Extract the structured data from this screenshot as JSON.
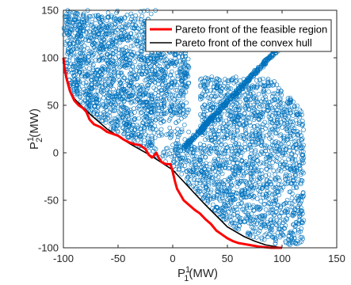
{
  "chart_data": {
    "type": "scatter",
    "title": "",
    "xlabel": {
      "base": "P",
      "sup": "1",
      "sub": "1",
      "unit": "(MW)"
    },
    "ylabel": {
      "base": "P",
      "sup": "1",
      "sub": "2",
      "unit": "(MW)"
    },
    "xlim": [
      -100,
      150
    ],
    "ylim": [
      -100,
      150
    ],
    "xticks": [
      "-100",
      "-50",
      "0",
      "50",
      "100",
      "150"
    ],
    "yticks": [
      "-100",
      "-50",
      "0",
      "50",
      "100",
      "150"
    ],
    "grid": false,
    "legend_position": "top-right",
    "colors": {
      "scatter": "#0072BD",
      "front_feasible": "#FF0000",
      "front_hull": "#000000",
      "axis": "#262626"
    },
    "series": [
      {
        "name": "Pareto front of the feasible region",
        "style": "line",
        "color": "#FF0000",
        "points": [
          [
            -100,
            100
          ],
          [
            -99,
            90
          ],
          [
            -97,
            78
          ],
          [
            -94,
            65
          ],
          [
            -90,
            55
          ],
          [
            -86,
            50
          ],
          [
            -82,
            47
          ],
          [
            -79,
            43
          ],
          [
            -76,
            35
          ],
          [
            -72,
            30
          ],
          [
            -66,
            27
          ],
          [
            -60,
            22
          ],
          [
            -55,
            20
          ],
          [
            -50,
            18
          ],
          [
            -45,
            14
          ],
          [
            -40,
            11
          ],
          [
            -35,
            9
          ],
          [
            -30,
            8
          ],
          [
            -25,
            4
          ],
          [
            -22,
            -2
          ],
          [
            -19,
            -5
          ],
          [
            -17,
            -3
          ],
          [
            -15,
            0
          ],
          [
            -13,
            -5
          ],
          [
            -10,
            -10
          ],
          [
            -6,
            -12
          ],
          [
            -2,
            -12
          ],
          [
            0,
            -20
          ],
          [
            2,
            -30
          ],
          [
            4,
            -38
          ],
          [
            6,
            -42
          ],
          [
            10,
            -50
          ],
          [
            15,
            -55
          ],
          [
            20,
            -60
          ],
          [
            25,
            -64
          ],
          [
            30,
            -70
          ],
          [
            35,
            -75
          ],
          [
            40,
            -82
          ],
          [
            45,
            -86
          ],
          [
            50,
            -90
          ],
          [
            55,
            -93
          ],
          [
            60,
            -95
          ],
          [
            65,
            -96
          ],
          [
            70,
            -97
          ],
          [
            80,
            -99
          ],
          [
            90,
            -100
          ],
          [
            100,
            -100
          ]
        ]
      },
      {
        "name": "Pareto front of the convex hull",
        "style": "line",
        "color": "#000000",
        "points": [
          [
            -100,
            100
          ],
          [
            -98,
            80
          ],
          [
            -95,
            68
          ],
          [
            -90,
            57
          ],
          [
            -85,
            51
          ],
          [
            -75,
            40
          ],
          [
            -60,
            25
          ],
          [
            -40,
            10
          ],
          [
            -20,
            -3
          ],
          [
            0,
            -18
          ],
          [
            30,
            -55
          ],
          [
            50,
            -78
          ],
          [
            65,
            -88
          ],
          [
            75,
            -93
          ],
          [
            85,
            -97
          ],
          [
            100,
            -100
          ]
        ]
      },
      {
        "name": "",
        "style": "scatter",
        "color": "#0072BD",
        "clusters": [
          {
            "label": "upper-left",
            "x_range": [
              -100,
              15
            ],
            "y_range": [
              -10,
              150
            ],
            "approx_points": 1800
          },
          {
            "label": "lower-right",
            "x_range": [
              0,
              120
            ],
            "y_range": [
              -100,
              80
            ],
            "approx_points": 1800
          },
          {
            "label": "diagonal-band",
            "x_from": 10,
            "y_from": 5,
            "x_to": 103,
            "y_to": 118,
            "approx_points": 420
          }
        ]
      }
    ],
    "legend": [
      {
        "label": "Pareto front of the feasible region",
        "color": "#FF0000"
      },
      {
        "label": "Pareto front of the convex hull",
        "color": "#000000"
      }
    ]
  }
}
